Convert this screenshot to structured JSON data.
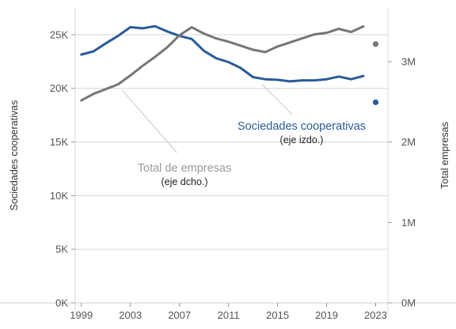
{
  "chart_data": {
    "type": "line",
    "x": [
      1999,
      2000,
      2001,
      2002,
      2003,
      2004,
      2005,
      2006,
      2007,
      2008,
      2009,
      2010,
      2011,
      2012,
      2013,
      2014,
      2015,
      2016,
      2017,
      2018,
      2019,
      2020,
      2021,
      2022
    ],
    "x_ticks": [
      "1999",
      "2003",
      "2007",
      "2011",
      "2015",
      "2019",
      "2023"
    ],
    "xlim": [
      1998.5,
      2024
    ],
    "y_left": {
      "label": "Sociedades cooperativas",
      "ticks": [
        "0K",
        "5K",
        "10K",
        "15K",
        "20K",
        "25K"
      ],
      "lim": [
        0,
        27500
      ]
    },
    "y_right": {
      "label": "Total empresas",
      "ticks": [
        "0M",
        "1M",
        "2M",
        "3M"
      ],
      "lim": [
        0,
        3670000
      ]
    },
    "grid": true,
    "series": [
      {
        "key": "coop",
        "name": "Sociedades cooperativas",
        "note": "(eje izdo.)",
        "axis": "left",
        "color": "#2a5b99",
        "values": [
          23150,
          23450,
          24200,
          24900,
          25700,
          25600,
          25800,
          25300,
          24900,
          24600,
          23500,
          22800,
          22450,
          21900,
          21050,
          20850,
          20800,
          20650,
          20750,
          20750,
          20850,
          21100,
          20850,
          21150
        ],
        "point_2023": 18700
      },
      {
        "key": "total",
        "name": "Total de empresas",
        "note": "(eje dcho.)",
        "axis": "right",
        "color": "#767676",
        "values": [
          2520000,
          2600000,
          2660000,
          2720000,
          2830000,
          2950000,
          3060000,
          3180000,
          3330000,
          3430000,
          3350000,
          3290000,
          3250000,
          3200000,
          3150000,
          3120000,
          3190000,
          3240000,
          3290000,
          3340000,
          3360000,
          3410000,
          3370000,
          3440000
        ],
        "point_2023": 3220000
      }
    ]
  }
}
